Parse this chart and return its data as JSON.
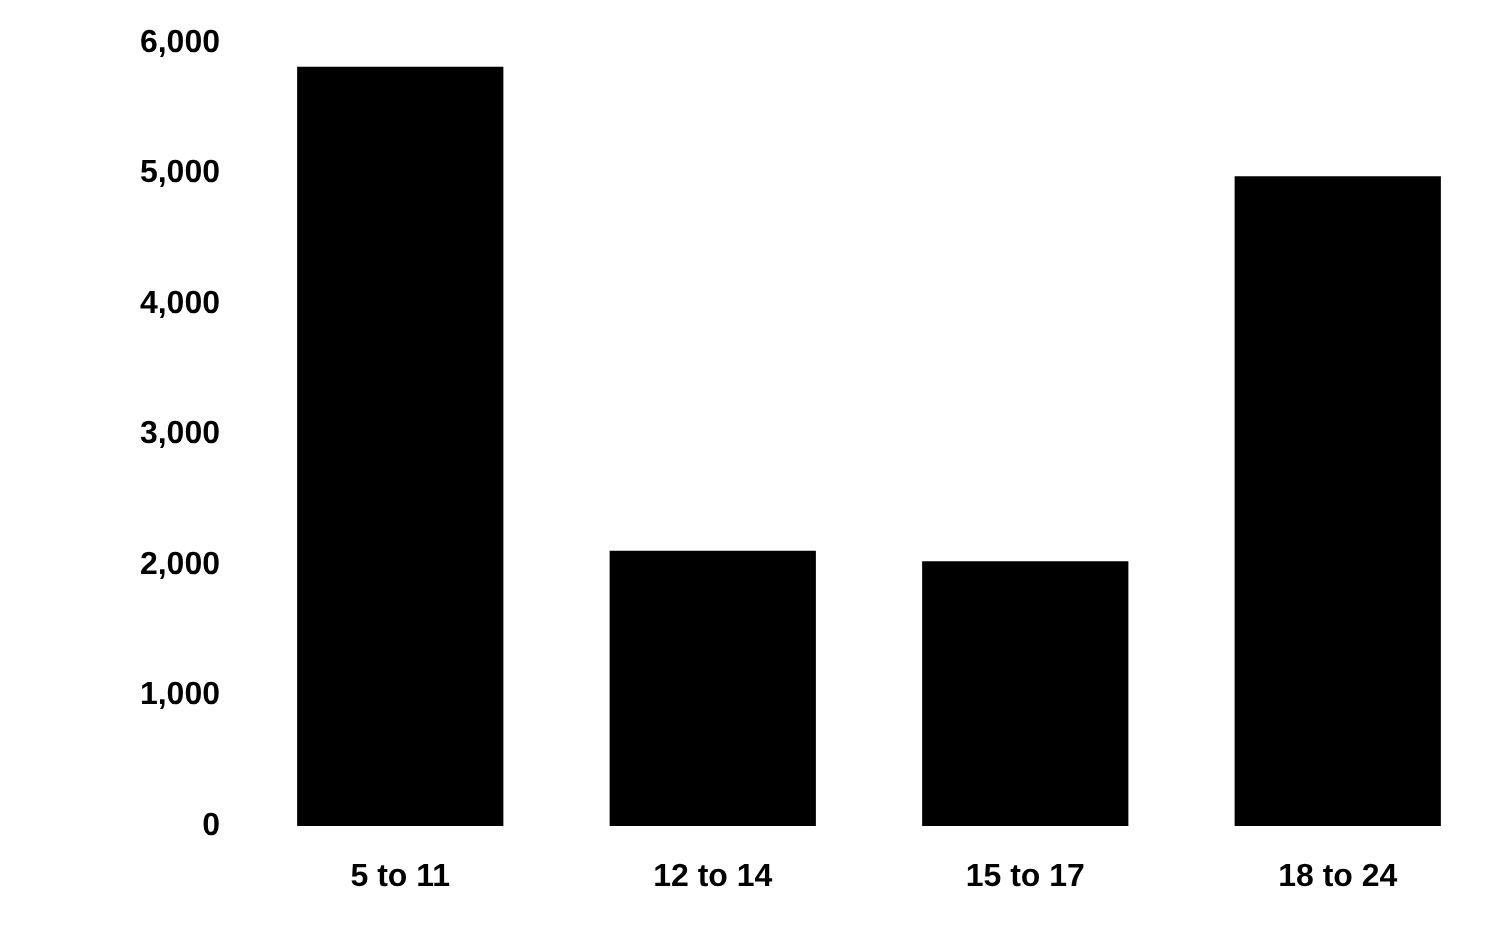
{
  "chart_data": {
    "type": "bar",
    "categories": [
      "5 to 11",
      "12 to 14",
      "15 to 17",
      "18 to 24"
    ],
    "values": [
      5820,
      2110,
      2030,
      4980
    ],
    "color": "#000000",
    "ylim": [
      0,
      6000
    ],
    "yticks": [
      0,
      {
        "value": 1000,
        "label": "1,000"
      },
      {
        "value": 2000,
        "label": "2,000"
      },
      {
        "value": 3000,
        "label": "3,000"
      },
      {
        "value": 4000,
        "label": "4,000"
      },
      {
        "value": 5000,
        "label": "5,000"
      },
      {
        "value": 6000,
        "label": "6,000"
      }
    ],
    "grid": false,
    "legend": false
  }
}
